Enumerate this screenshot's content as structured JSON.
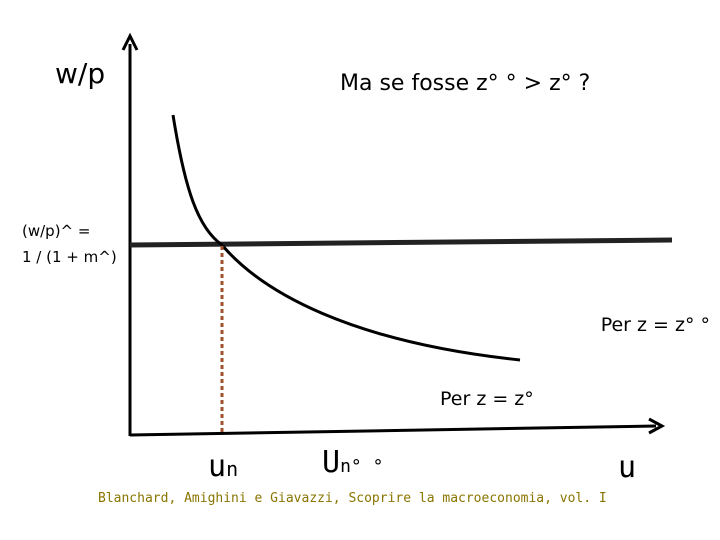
{
  "title": "Ma se fosse z° ° > z° ?",
  "y_axis_label": "w/p",
  "x_axis_label": "u",
  "wage_label": {
    "line1": "(w/p)^ =",
    "line2": "1 / (1 + m^)"
  },
  "curve_labels": {
    "new": "Per z = z° °",
    "old": "Per z = z°"
  },
  "x_points": {
    "un": {
      "base": "u",
      "sub": "n"
    },
    "un2": {
      "base": "U",
      "sub": "n° °"
    }
  },
  "source": "Blanchard, Amighini e Giavazzi, Scoprire la macroeconomia, vol. I"
}
